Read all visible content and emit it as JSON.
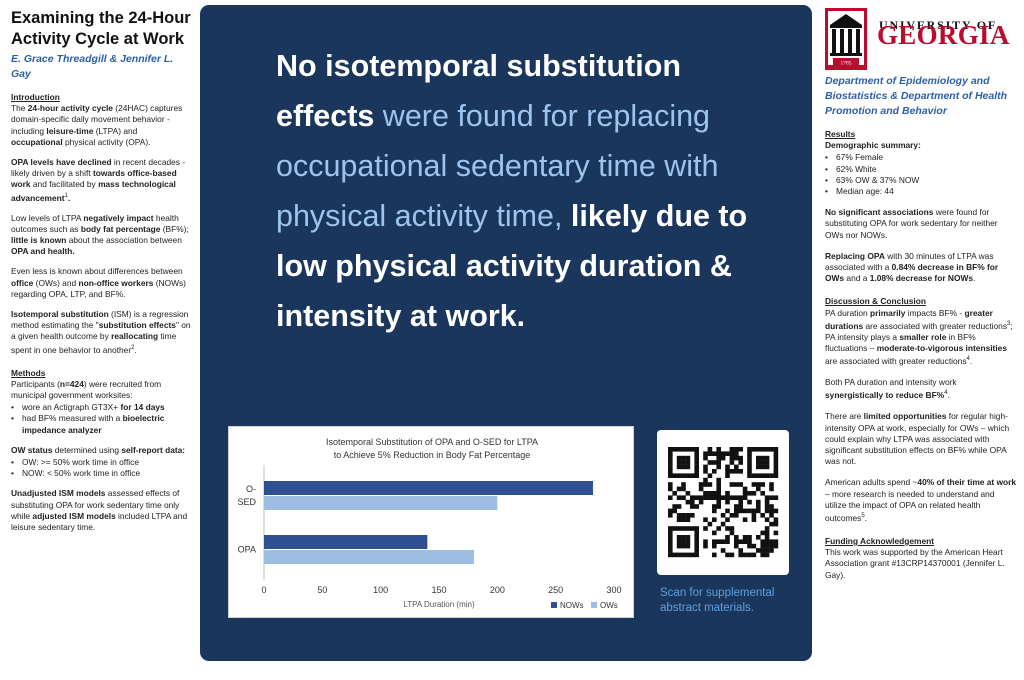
{
  "left": {
    "title": "Examining the 24-Hour Activity Cycle at Work",
    "authors": "E. Grace Threadgill & Jennifer L. Gay",
    "intro_heading": "Introduction",
    "intro_p1": {
      "a": "The ",
      "b": "24-hour activity cycle",
      "c": " (24HAC) captures domain-specific daily movement behavior - including ",
      "d": "leisure-time",
      "e": " (LTPA) and ",
      "f": "occupational",
      "g": " physical activity (OPA)."
    },
    "intro_p2": {
      "a": "OPA levels have declined",
      "b": " in recent decades - likely driven by a shift ",
      "c": "towards office-based work",
      "d": " and facilitated by ",
      "e": "mass technological advancement",
      "f": "1",
      "g": "."
    },
    "intro_p3": {
      "a": "Low levels of LTPA ",
      "b": "negatively impact",
      "c": " health outcomes such as ",
      "d": "body fat percentage",
      "e": " (BF%); ",
      "f": "little is known",
      "g": " about the association between ",
      "h": "OPA and health."
    },
    "intro_p4": {
      "a": "Even less is known about differences between ",
      "b": "office",
      "c": " (OWs) and ",
      "d": "non-office workers",
      "e": " (NOWs) regarding OPA, LTP, and BF%."
    },
    "intro_p5": {
      "a": "Isotemporal substitution",
      "b": " (ISM) is a regression method estimating the \"",
      "c": "substitution effects",
      "d": "\" on a given health outcome by ",
      "e": "reallocating",
      "f": " time spent in one behavior to another",
      "g": "2",
      "h": "."
    },
    "methods_heading": "Methods",
    "methods_p1": {
      "a": "Participants (",
      "b": "n=424",
      "c": ") were recruited from municipal government worksites:"
    },
    "methods_b1": {
      "a": "wore an Actigraph GT3X+ ",
      "b": "for 14 days"
    },
    "methods_b2": {
      "a": "had BF% measured with a ",
      "b": "bioelectric impedance analyzer"
    },
    "ow_status": {
      "a": "OW status",
      "b": " determined using ",
      "c": "self-report data:"
    },
    "ow_b1": "OW: >= 50%  work time in office",
    "ow_b2": "NOW: < 50% work time in office",
    "ism_p": {
      "a": "Unadjusted ISM models",
      "b": " assessed effects of substituting OPA for work sedentary time only while ",
      "c": "adjusted ISM models",
      "d": " included LTPA and leisure sedentary time."
    }
  },
  "center": {
    "headline": {
      "a": "No isotemporal substitution effects",
      "b": " were found for replacing occupational sedentary time with physical activity time, ",
      "c": "likely due to low physical activity duration & intensity at work."
    },
    "qr_caption": "Scan for supplemental abstract materials."
  },
  "chart_data": {
    "type": "bar",
    "orientation": "horizontal",
    "title": "Isotemporal Substitution of OPA and O-SED for LTPA to Achieve 5% Reduction in Body Fat Percentage",
    "title_line1": "Isotemporal Substitution of OPA and O-SED for LTPA",
    "title_line2": "to Achieve 5% Reduction in Body Fat Percentage",
    "categories": [
      "O-SED",
      "OPA"
    ],
    "category_labels": [
      [
        "O-",
        "SED"
      ],
      [
        "OPA"
      ]
    ],
    "series": [
      {
        "name": "NOWs",
        "values": [
          282,
          140
        ],
        "color": "#2e4f91"
      },
      {
        "name": "OWs",
        "values": [
          200,
          180
        ],
        "color": "#9dbde3"
      }
    ],
    "xlabel": "LTPA Duration (min)",
    "xlim": [
      0,
      300
    ],
    "xticks": [
      0,
      50,
      100,
      150,
      200,
      250,
      300
    ],
    "grid": false,
    "legend_position": "bottom-right"
  },
  "right": {
    "logo_text_top": "UNIVERSITY OF",
    "logo_text_main": "GEORGIA",
    "logo_year": "1785",
    "dept": "Department of Epidemiology and Biostatistics & Department of Health Promotion and Behavior",
    "results_heading": "Results",
    "demo_heading": "Demographic summary:",
    "demo_items": [
      "67% Female",
      "62% White",
      "63% OW & 37% NOW",
      "Median age: 44"
    ],
    "res_p1": {
      "a": "No significant associations",
      "b": " were found for substituting OPA for work sedentary for neither OWs nor NOWs."
    },
    "res_p2": {
      "a": "Replacing OPA",
      "b": " with 30 minutes of LTPA was associated with a ",
      "c": "0.84% decrease in BF% for OWs",
      "d": " and a ",
      "e": "1.08% decrease for NOWs",
      "f": "."
    },
    "disc_heading": "Discussion & Conclusion",
    "disc_p1": {
      "a": "PA duration ",
      "b": "primarily",
      "c": " impacts BF% - ",
      "d": "greater durations",
      "e": " are associated with greater reductions",
      "f": "3",
      "g": "; PA intensity plays a ",
      "h": "smaller role",
      "i": " in BF% fluctuations – ",
      "j": "moderate-to-vigorous intensities",
      "k": " are associated with greater reductions",
      "l": "4",
      "m": "."
    },
    "disc_p2": {
      "a": "Both PA duration and intensity work ",
      "b": "synergistically to reduce BF%",
      "c": "4",
      "d": "."
    },
    "disc_p3": {
      "a": "There are ",
      "b": "limited opportunities",
      "c": " for regular high-intensity OPA at work, especially for OWs – which could explain why LTPA was associated with significant substitution effects on BF% while OPA was not."
    },
    "disc_p4": {
      "a": "American adults spend ~",
      "b": "40% of their time at work",
      "c": " – more research is needed to understand and utilize the impact of OPA on related health outcomes",
      "d": "5",
      "e": "."
    },
    "funding_heading": "Funding Acknowledgement",
    "funding_text": "This work was supported by the American Heart Association grant #13CRP14370001 (Jennifer L. Gay)."
  }
}
